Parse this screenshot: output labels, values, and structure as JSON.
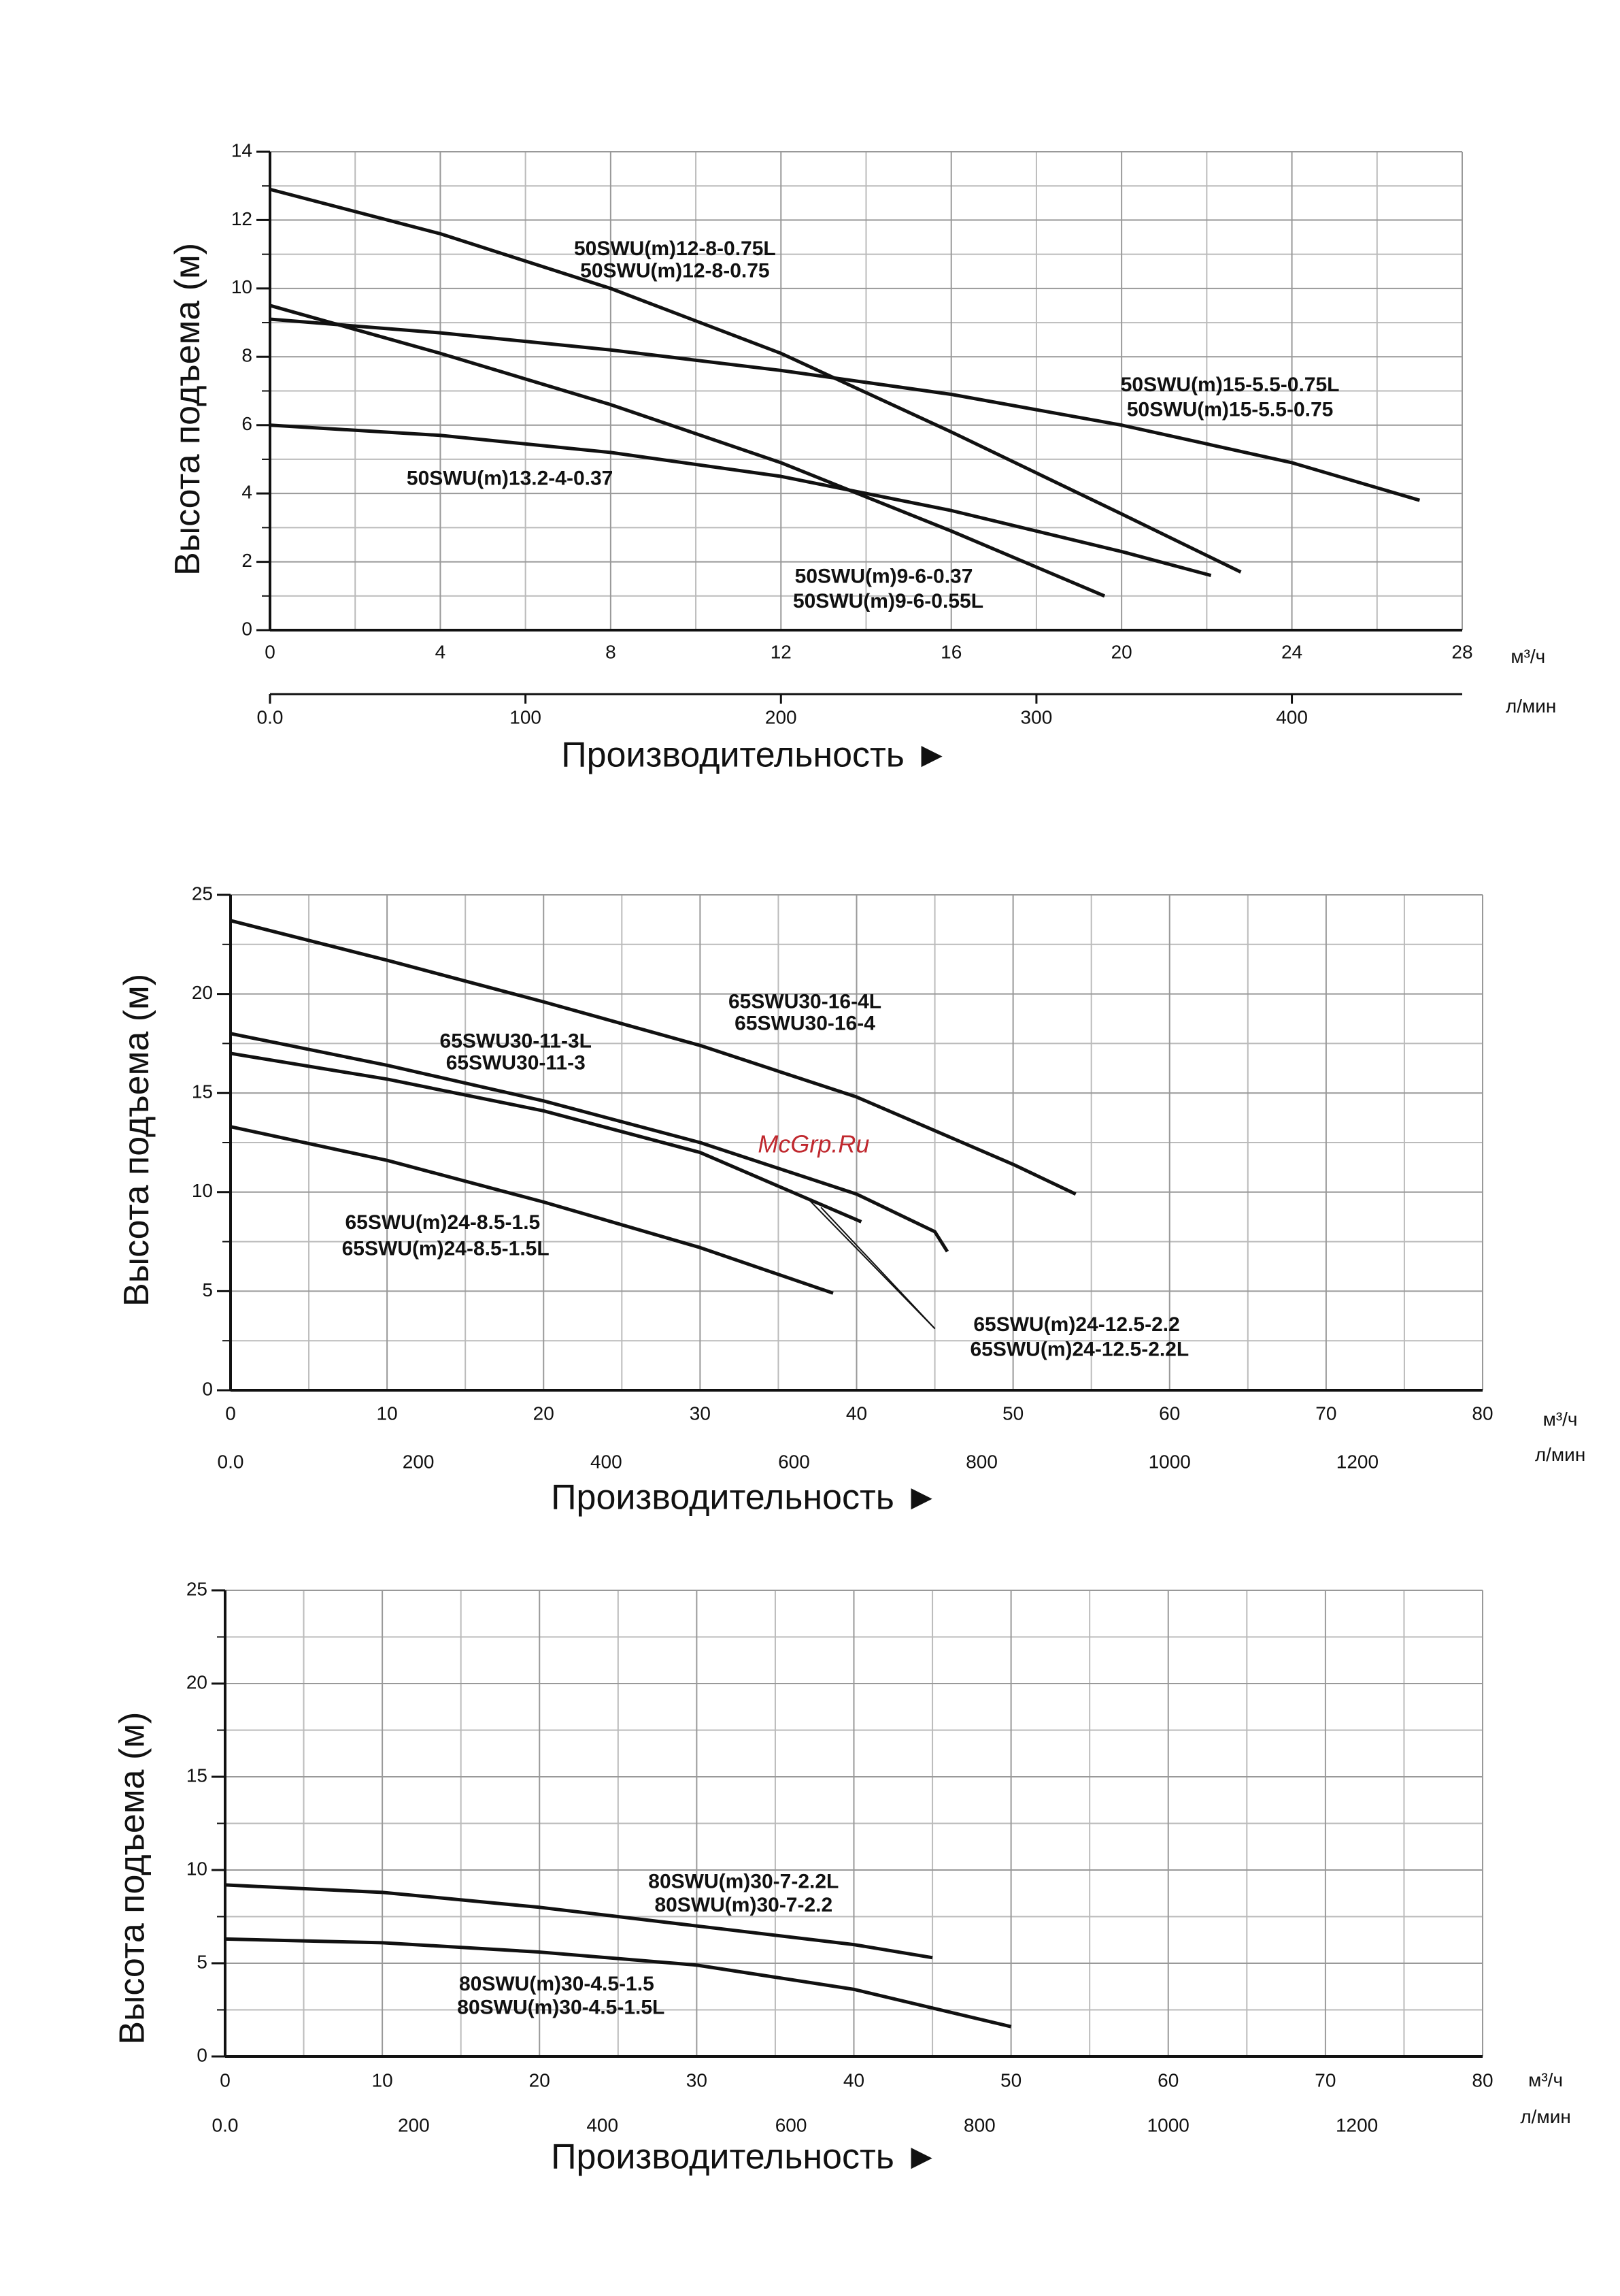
{
  "chart_data": [
    {
      "type": "line",
      "ylabel": "Высота подъема (м)",
      "xlabel": "Производительность ►",
      "xunit": "м³/ч",
      "x2unit": "л/мин",
      "xlim": [
        0,
        28
      ],
      "xticks": [
        0,
        4,
        8,
        12,
        16,
        20,
        24,
        28
      ],
      "ylim": [
        0,
        14
      ],
      "yticks": [
        0,
        2,
        4,
        6,
        8,
        10,
        12,
        14
      ],
      "x2lim": [
        0,
        466.67
      ],
      "x2ticks": [
        {
          "value": 0,
          "label": "0.0"
        },
        100,
        200,
        300,
        400
      ],
      "grid": true,
      "series": [
        {
          "labels": [
            "50SWU(m)12-8-0.75L",
            "50SWU(m)12-8-0.75"
          ],
          "color": "#111111",
          "x": [
            0,
            4,
            8,
            12,
            16,
            20,
            22.8
          ],
          "values": [
            12.9,
            11.6,
            10.0,
            8.1,
            5.8,
            3.4,
            1.7
          ]
        },
        {
          "labels": [
            "50SWU(m)15-5.5-0.75L",
            "50SWU(m)15-5.5-0.75"
          ],
          "color": "#111111",
          "x": [
            0,
            4,
            8,
            12,
            16,
            20,
            24,
            27
          ],
          "values": [
            9.1,
            8.7,
            8.2,
            7.6,
            6.9,
            6.0,
            4.9,
            3.8
          ]
        },
        {
          "labels": [
            "50SWU(m)9-6-0.37",
            "50SWU(m)9-6-0.55L"
          ],
          "color": "#111111",
          "x": [
            0,
            4,
            8,
            12,
            16,
            19.6
          ],
          "values": [
            9.5,
            8.1,
            6.6,
            4.9,
            2.9,
            1.0
          ]
        },
        {
          "labels": [
            "50SWU(m)13.2-4-0.37"
          ],
          "color": "#111111",
          "x": [
            0,
            4,
            8,
            12,
            16,
            20,
            22.1
          ],
          "values": [
            6.0,
            5.7,
            5.2,
            4.5,
            3.5,
            2.3,
            1.6
          ]
        }
      ]
    },
    {
      "type": "line",
      "ylabel": "Высота подъема (м)",
      "xlabel": "Производительность ►",
      "xunit": "м³/ч",
      "x2unit": "л/мин",
      "xlim": [
        0,
        80
      ],
      "xticks": [
        0,
        10,
        20,
        30,
        40,
        50,
        60,
        70,
        80
      ],
      "ylim": [
        0,
        25
      ],
      "yticks": [
        0,
        5,
        10,
        15,
        20,
        25
      ],
      "x2lim": [
        0,
        1333.33
      ],
      "x2ticks": [
        {
          "value": 0,
          "label": "0.0"
        },
        200,
        400,
        600,
        800,
        1000,
        1200
      ],
      "grid": true,
      "watermark": "McGrp.Ru",
      "series": [
        {
          "labels": [
            "65SWU30-16-4L",
            "65SWU30-16-4"
          ],
          "color": "#111111",
          "x": [
            0,
            10,
            20,
            30,
            40,
            50,
            54
          ],
          "values": [
            23.7,
            21.7,
            19.6,
            17.4,
            14.8,
            11.4,
            9.9
          ]
        },
        {
          "labels": [
            "65SWU30-11-3L",
            "65SWU30-11-3"
          ],
          "color": "#111111",
          "x": [
            0,
            10,
            20,
            30,
            40,
            45,
            45.8
          ],
          "values": [
            18.0,
            16.4,
            14.6,
            12.5,
            9.9,
            8.0,
            7.0
          ]
        },
        {
          "labels": [
            "65SWU(m)24-12.5-2.2",
            "65SWU(m)24-12.5-2.2L"
          ],
          "color": "#111111",
          "x": [
            0,
            10,
            20,
            30,
            40.3
          ],
          "values": [
            17.0,
            15.7,
            14.1,
            12.0,
            8.5
          ]
        },
        {
          "labels": [
            "65SWU(m)24-8.5-1.5",
            "65SWU(m)24-8.5-1.5L"
          ],
          "color": "#111111",
          "x": [
            0,
            10,
            20,
            30,
            38.5
          ],
          "values": [
            13.3,
            11.6,
            9.5,
            7.2,
            4.9
          ]
        }
      ]
    },
    {
      "type": "line",
      "ylabel": "Высота подъема (м)",
      "xlabel": "Производительность ►",
      "xunit": "м³/ч",
      "x2unit": "л/мин",
      "xlim": [
        0,
        80
      ],
      "xticks": [
        0,
        10,
        20,
        30,
        40,
        50,
        60,
        70,
        80
      ],
      "ylim": [
        0,
        25
      ],
      "yticks": [
        0,
        5,
        10,
        15,
        20,
        25
      ],
      "x2lim": [
        0,
        1333.33
      ],
      "x2ticks": [
        {
          "value": 0,
          "label": "0.0"
        },
        200,
        400,
        600,
        800,
        1000,
        1200
      ],
      "grid": true,
      "series": [
        {
          "labels": [
            "80SWU(m)30-7-2.2L",
            "80SWU(m)30-7-2.2"
          ],
          "color": "#111111",
          "x": [
            0,
            10,
            20,
            30,
            40,
            45
          ],
          "values": [
            9.2,
            8.8,
            8.0,
            7.0,
            6.0,
            5.3
          ]
        },
        {
          "labels": [
            "80SWU(m)30-4.5-1.5",
            "80SWU(m)30-4.5-1.5L"
          ],
          "color": "#111111",
          "x": [
            0,
            10,
            20,
            30,
            40,
            50
          ],
          "values": [
            6.3,
            6.1,
            5.6,
            4.9,
            3.6,
            1.6
          ]
        }
      ]
    }
  ]
}
